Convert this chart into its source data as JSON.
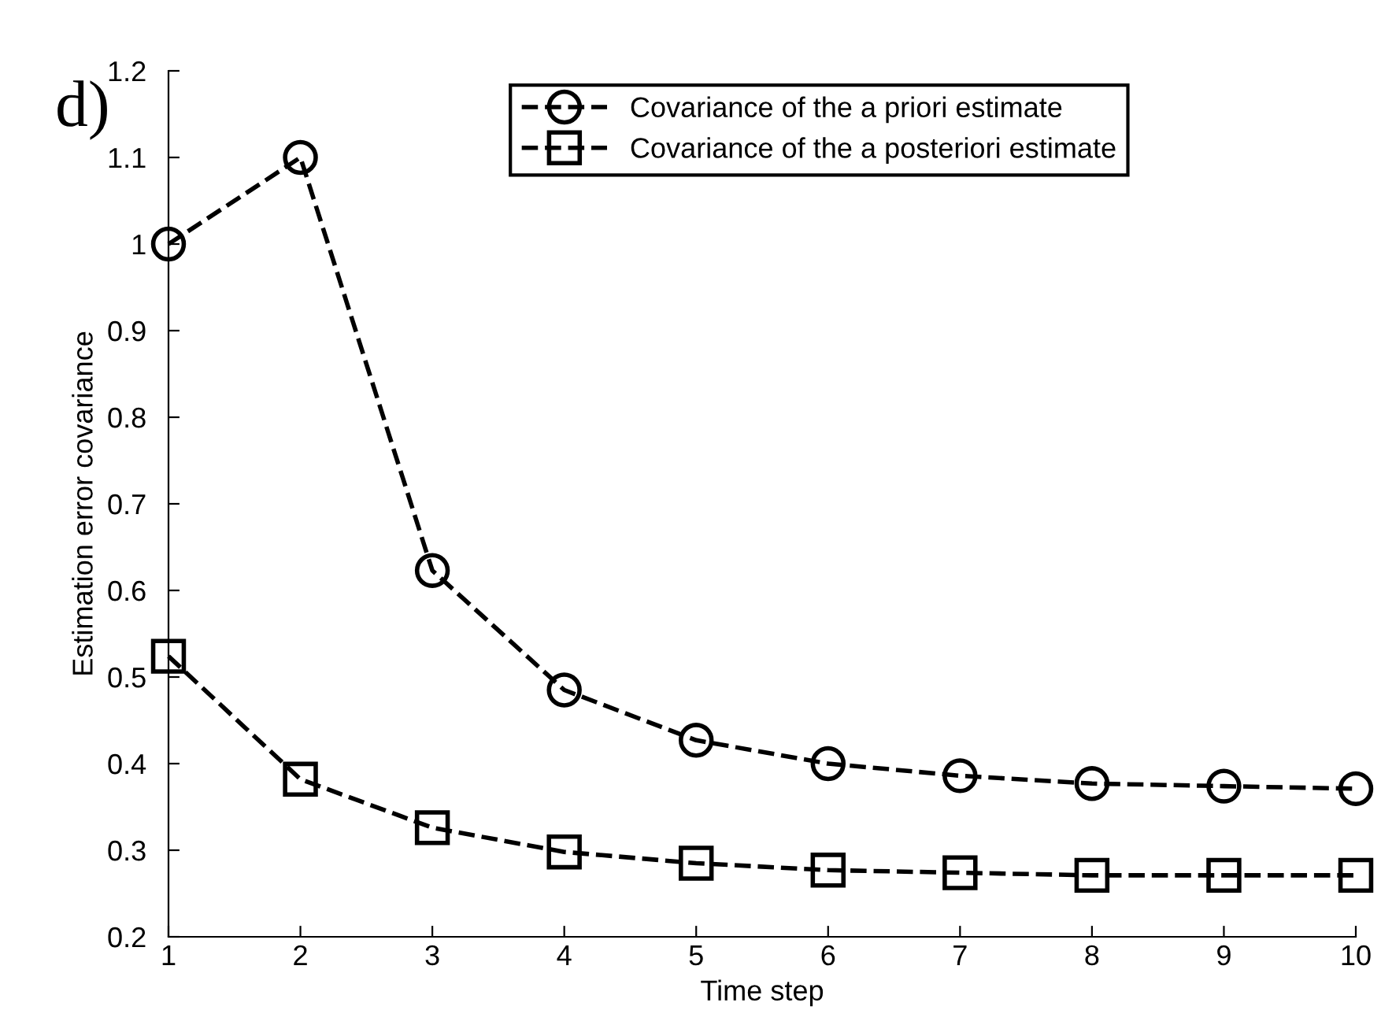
{
  "chart_data": {
    "type": "line",
    "xlabel": "Time step",
    "ylabel": "Estimation error covariance",
    "annotations": [
      "d)"
    ],
    "x": [
      1,
      2,
      3,
      4,
      5,
      6,
      7,
      8,
      9,
      10
    ],
    "series": [
      {
        "name": "Covariance of the a priori estimate",
        "color": "#000000",
        "marker": "circle",
        "values": [
          1.0,
          1.1,
          0.623,
          0.485,
          0.427,
          0.4,
          0.386,
          0.377,
          0.374,
          0.371
        ]
      },
      {
        "name": "Covariance of the a posteriori estimate",
        "color": "#000000",
        "marker": "square",
        "values": [
          0.524,
          0.382,
          0.326,
          0.298,
          0.285,
          0.277,
          0.274,
          0.271,
          0.271,
          0.271
        ]
      }
    ],
    "line_style": "dashed",
    "legend": "top right",
    "grid": false,
    "xlim": [
      1,
      10
    ],
    "xticks": [
      1,
      2,
      3,
      4,
      5,
      6,
      7,
      8,
      9,
      10
    ],
    "ylim": [
      0.2,
      1.2
    ],
    "yticks": [
      0.2,
      0.3,
      0.4,
      0.5,
      0.6,
      0.7,
      0.8,
      0.9,
      1,
      1.1,
      1.2
    ]
  }
}
